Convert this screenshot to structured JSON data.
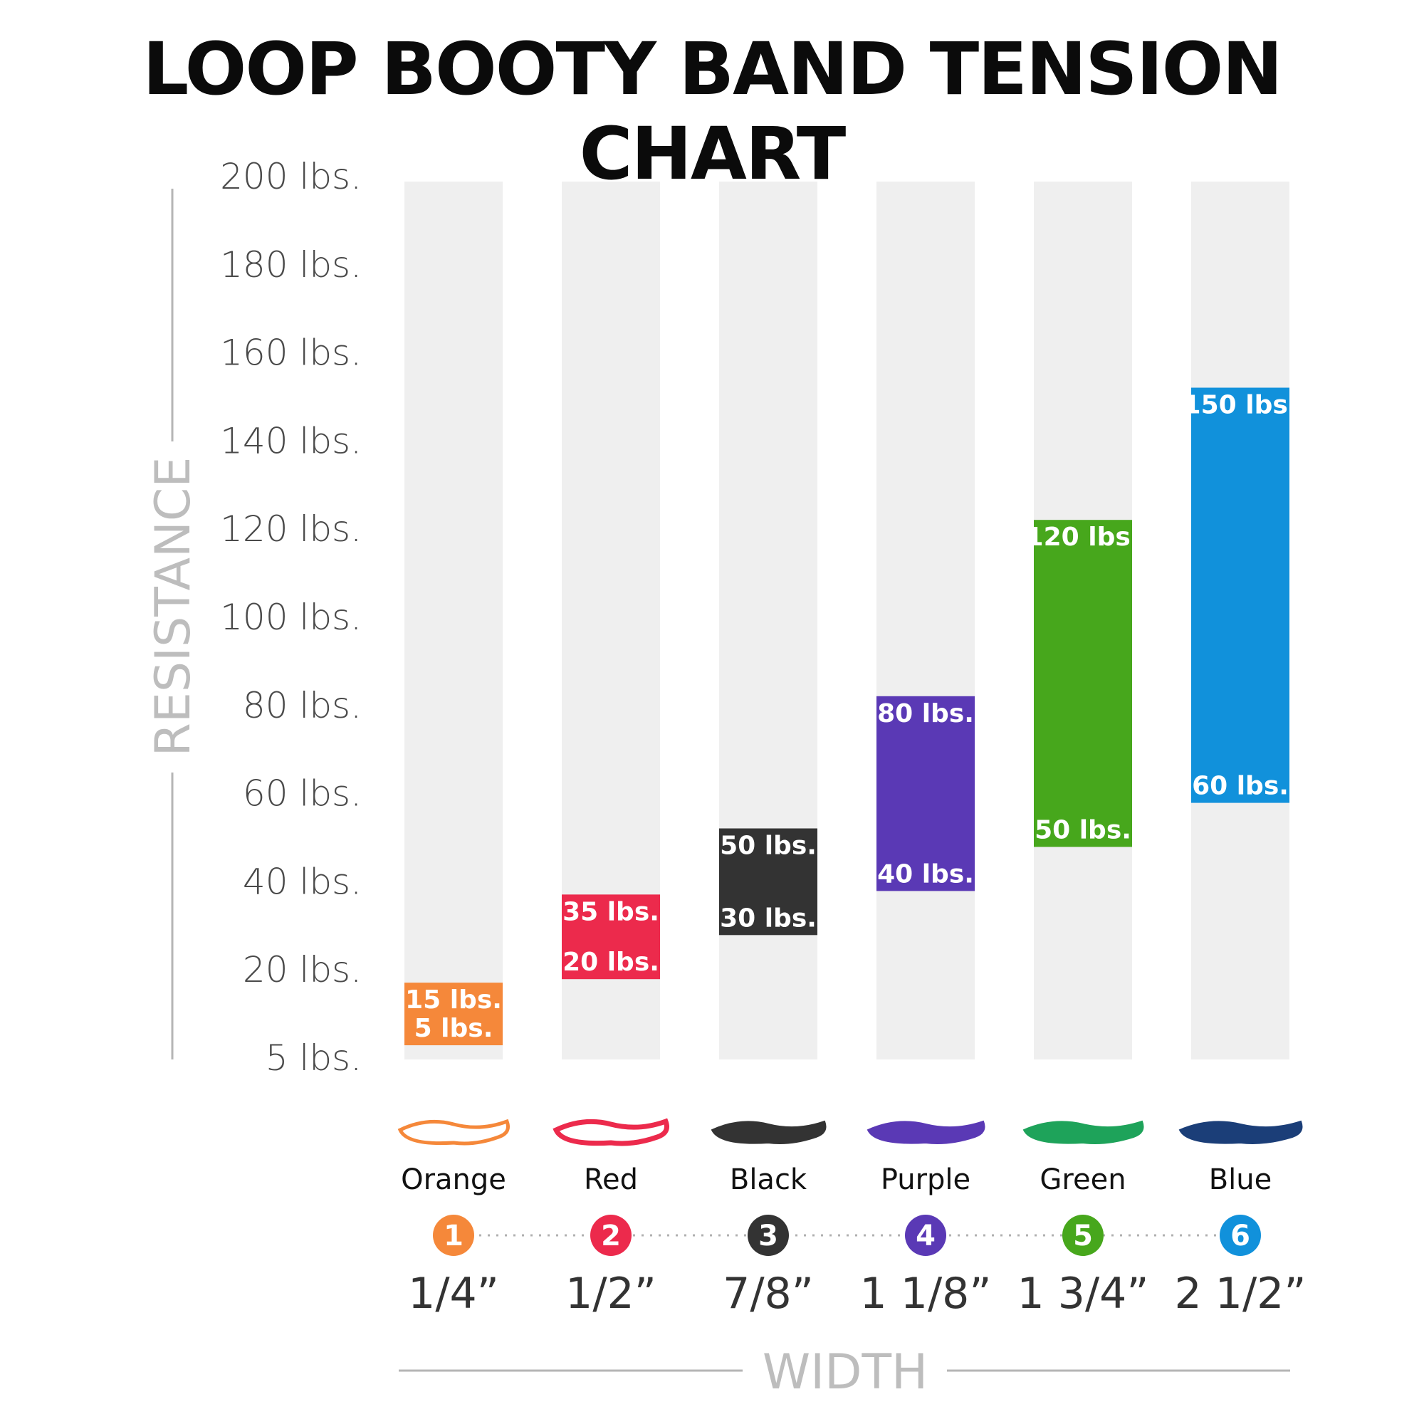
{
  "title": "LOOP BOOTY BAND TENSION CHART",
  "chart_data": {
    "type": "bar",
    "title": "LOOP BOOTY BAND TENSION CHART",
    "ylabel": "RESISTANCE",
    "xlabel": "WIDTH",
    "ylim": [
      0,
      200
    ],
    "y_ticks": [
      {
        "value": 5,
        "label": "5 lbs."
      },
      {
        "value": 20,
        "label": "20 lbs."
      },
      {
        "value": 40,
        "label": "40 lbs."
      },
      {
        "value": 60,
        "label": "60 lbs."
      },
      {
        "value": 80,
        "label": "80 lbs."
      },
      {
        "value": 100,
        "label": "100 lbs."
      },
      {
        "value": 120,
        "label": "120 lbs."
      },
      {
        "value": 140,
        "label": "140 lbs."
      },
      {
        "value": 160,
        "label": "160 lbs."
      },
      {
        "value": 180,
        "label": "180 lbs."
      },
      {
        "value": 200,
        "label": "200 lbs."
      }
    ],
    "categories": [
      "Orange",
      "Red",
      "Black",
      "Purple",
      "Green",
      "Blue"
    ],
    "series": [
      {
        "name": "Orange",
        "number": "1",
        "width": "1/4”",
        "low": 5,
        "high": 15,
        "low_label": "5 lbs.",
        "high_label": "15 lbs.",
        "color": "#f5883a"
      },
      {
        "name": "Red",
        "number": "2",
        "width": "1/2”",
        "low": 20,
        "high": 35,
        "low_label": "20 lbs.",
        "high_label": "35 lbs.",
        "color": "#ec2a4c"
      },
      {
        "name": "Black",
        "number": "3",
        "width": "7/8”",
        "low": 30,
        "high": 50,
        "low_label": "30 lbs.",
        "high_label": "50 lbs.",
        "color": "#333333"
      },
      {
        "name": "Purple",
        "number": "4",
        "width": "1 1/8”",
        "low": 40,
        "high": 80,
        "low_label": "40 lbs.",
        "high_label": "80 lbs.",
        "color": "#5a39b5"
      },
      {
        "name": "Green",
        "number": "5",
        "width": "1 3/4”",
        "low": 50,
        "high": 120,
        "low_label": "50 lbs.",
        "high_label": "120 lbs.",
        "color": "#47a71c"
      },
      {
        "name": "Blue",
        "number": "6",
        "width": "2 1/2”",
        "low": 60,
        "high": 150,
        "low_label": "60 lbs.",
        "high_label": "150 lbs.",
        "color": "#1191db"
      }
    ]
  },
  "colors": {
    "track": "#efefef",
    "axis_line": "#b5b5b5",
    "dotted": "#b0b0b0"
  }
}
